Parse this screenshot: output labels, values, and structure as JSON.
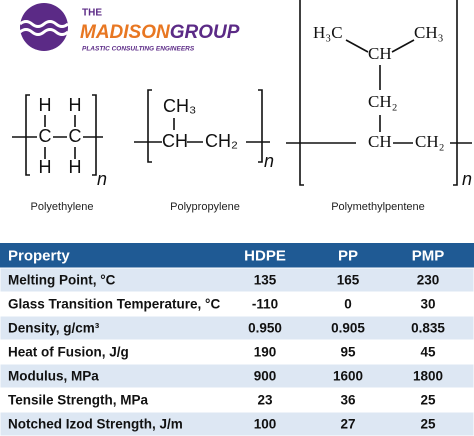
{
  "logo": {
    "top": "THE",
    "name_a": "MADISON",
    "name_b": "GROUP",
    "tagline": "PLASTIC CONSULTING ENGINEERS"
  },
  "structures": [
    {
      "name": "Polyethylene",
      "atoms": [
        "H",
        "H",
        "C",
        "C",
        "H",
        "H"
      ],
      "repeat": "n"
    },
    {
      "name": "Polypropylene",
      "atoms": [
        "CH₃",
        "CH",
        "CH₂"
      ],
      "repeat": "n"
    },
    {
      "name": "Polymethylpentene",
      "atoms": [
        "H₃C",
        "CH",
        "CH₃",
        "CH₂",
        "CH",
        "CH₂"
      ],
      "repeat": "n"
    }
  ],
  "table": {
    "header": [
      "Property",
      "HDPE",
      "PP",
      "PMP"
    ],
    "rows": [
      [
        "Melting Point, °C",
        "135",
        "165",
        "230"
      ],
      [
        "Glass Transition Temperature, °C",
        "-110",
        "0",
        "30"
      ],
      [
        "Density, g/cm³",
        "0.950",
        "0.905",
        "0.835"
      ],
      [
        "Heat of Fusion, J/g",
        "190",
        "95",
        "45"
      ],
      [
        "Modulus, MPa",
        "900",
        "1600",
        "1800"
      ],
      [
        "Tensile Strength, MPa",
        "23",
        "36",
        "25"
      ],
      [
        "Notched Izod Strength, J/m",
        "100",
        "27",
        "25"
      ]
    ]
  }
}
